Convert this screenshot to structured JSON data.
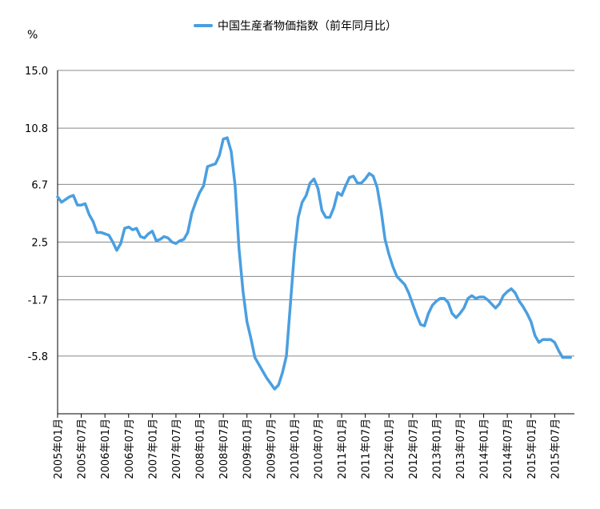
{
  "chart_data": {
    "type": "line",
    "unit_label": "%",
    "ylim": [
      -10,
      15
    ],
    "y_ticks": [
      "15.0",
      "10.8",
      "6.7",
      "2.5",
      "-1.7",
      "-5.8"
    ],
    "y_tick_values": [
      15.0,
      10.8,
      6.7,
      2.5,
      -1.7,
      -5.8
    ],
    "extra_gridlines": [
      0.0
    ],
    "x_tick_labels": [
      "2005年01月",
      "2005年07月",
      "2006年01月",
      "2006年07月",
      "2007年01月",
      "2007年07月",
      "2008年01月",
      "2008年07月",
      "2009年01月",
      "2009年07月",
      "2010年01月",
      "2010年07月",
      "2011年01月",
      "2011年07月",
      "2012年01月",
      "2012年07月",
      "2013年01月",
      "2013年07月",
      "2014年01月",
      "2014年07月",
      "2015年01月",
      "2015年07月"
    ],
    "legend": "top",
    "grid": true,
    "colors": {
      "series": "#4a9fe0",
      "grid": "#888888",
      "axis": "#000000"
    },
    "series": [
      {
        "name": "中国生産者物価指数（前年同月比）",
        "x_start": "2005年01月",
        "values": [
          5.8,
          5.4,
          5.6,
          5.8,
          5.9,
          5.2,
          5.2,
          5.3,
          4.5,
          4.0,
          3.2,
          3.2,
          3.1,
          3.0,
          2.5,
          1.9,
          2.4,
          3.5,
          3.6,
          3.4,
          3.5,
          2.9,
          2.8,
          3.1,
          3.3,
          2.6,
          2.7,
          2.9,
          2.8,
          2.5,
          2.4,
          2.6,
          2.7,
          3.2,
          4.6,
          5.4,
          6.1,
          6.6,
          8.0,
          8.1,
          8.2,
          8.8,
          10.0,
          10.1,
          9.1,
          6.6,
          2.0,
          -1.1,
          -3.3,
          -4.5,
          -5.9,
          -6.4,
          -6.9,
          -7.4,
          -7.8,
          -8.2,
          -7.9,
          -7.0,
          -5.8,
          -2.1,
          1.7,
          4.3,
          5.4,
          5.9,
          6.8,
          7.1,
          6.4,
          4.8,
          4.3,
          4.3,
          5.0,
          6.1,
          5.9,
          6.6,
          7.2,
          7.3,
          6.8,
          6.8,
          7.1,
          7.5,
          7.3,
          6.5,
          4.8,
          2.7,
          1.6,
          0.7,
          0.0,
          -0.3,
          -0.6,
          -1.2,
          -2.0,
          -2.8,
          -3.5,
          -3.6,
          -2.7,
          -2.1,
          -1.8,
          -1.6,
          -1.6,
          -1.9,
          -2.7,
          -3.0,
          -2.7,
          -2.3,
          -1.6,
          -1.4,
          -1.6,
          -1.5,
          -1.5,
          -1.7,
          -2.0,
          -2.3,
          -2.0,
          -1.4,
          -1.1,
          -0.9,
          -1.2,
          -1.8,
          -2.2,
          -2.7,
          -3.3,
          -4.3,
          -4.8,
          -4.6,
          -4.6,
          -4.6,
          -4.8,
          -5.4,
          -5.9,
          -5.9,
          -5.9
        ]
      }
    ]
  }
}
